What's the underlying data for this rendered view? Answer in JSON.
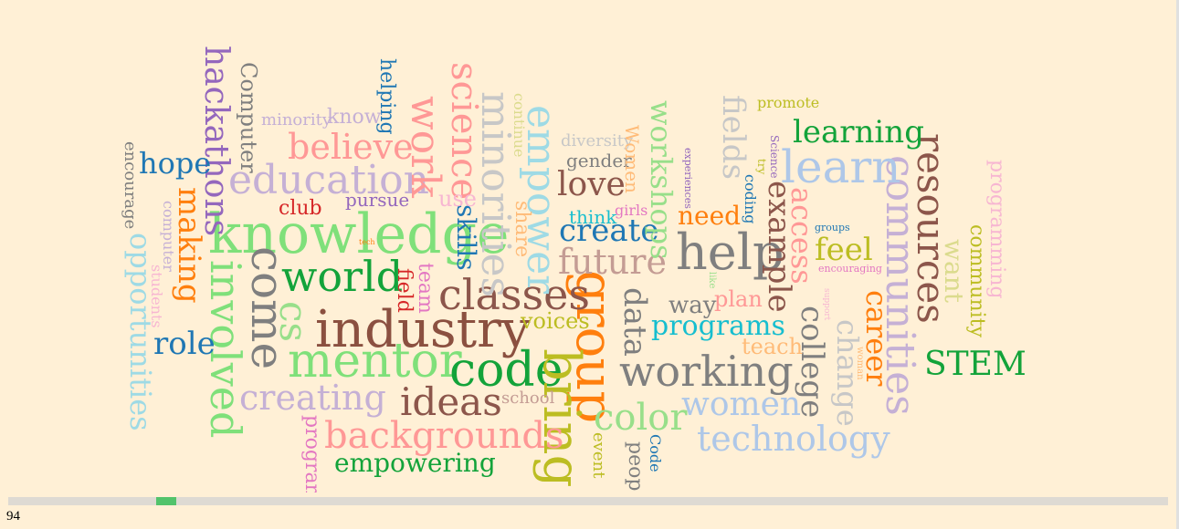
{
  "words": [
    {
      "text": "knowledge",
      "color": "#7fe07a",
      "size": 60
    },
    {
      "text": "industry",
      "color": "#8b5040",
      "size": 56
    },
    {
      "text": "mentor",
      "color": "#7fe07a",
      "size": 52
    },
    {
      "text": "code",
      "color": "#13a33a",
      "size": 52
    },
    {
      "text": "group",
      "color": "#ff7f0e",
      "size": 56
    },
    {
      "text": "bring",
      "color": "#bcbd22",
      "size": 56
    },
    {
      "text": "help",
      "color": "#7f7f7f",
      "size": 54
    },
    {
      "text": "working",
      "color": "#7f7f7f",
      "size": 46
    },
    {
      "text": "communities",
      "color": "#c5b0d5",
      "size": 44
    },
    {
      "text": "resources",
      "color": "#8c564b",
      "size": 42
    },
    {
      "text": "learn",
      "color": "#aec7e8",
      "size": 50
    },
    {
      "text": "come",
      "color": "#7f7f7f",
      "size": 50
    },
    {
      "text": "involved",
      "color": "#7fe07a",
      "size": 46
    },
    {
      "text": "world",
      "color": "#13a33a",
      "size": 46
    },
    {
      "text": "classes",
      "color": "#8c564b",
      "size": 46
    },
    {
      "text": "education",
      "color": "#c5b0d5",
      "size": 44
    },
    {
      "text": "minorities",
      "color": "#c7c7c7",
      "size": 44
    },
    {
      "text": "empower",
      "color": "#9edae5",
      "size": 44
    },
    {
      "text": "work",
      "color": "#ff9896",
      "size": 44
    },
    {
      "text": "science",
      "color": "#ff9896",
      "size": 40
    },
    {
      "text": "ideas",
      "color": "#8c564b",
      "size": 42
    },
    {
      "text": "backgrounds",
      "color": "#ff9896",
      "size": 40
    },
    {
      "text": "color",
      "color": "#98df8a",
      "size": 40
    },
    {
      "text": "technology",
      "color": "#aec7e8",
      "size": 38
    },
    {
      "text": "women",
      "color": "#aec7e8",
      "size": 36
    },
    {
      "text": "creating",
      "color": "#c5b0d5",
      "size": 38
    },
    {
      "text": "cs",
      "color": "#98df8a",
      "size": 42
    },
    {
      "text": "believe",
      "color": "#ff9896",
      "size": 38
    },
    {
      "text": "future",
      "color": "#c49c94",
      "size": 38
    },
    {
      "text": "love",
      "color": "#8c564b",
      "size": 36
    },
    {
      "text": "create",
      "color": "#1f77b4",
      "size": 34
    },
    {
      "text": "hackathons",
      "color": "#9467bd",
      "size": 36
    },
    {
      "text": "opportunities",
      "color": "#9edae5",
      "size": 32
    },
    {
      "text": "making",
      "color": "#ff7f0e",
      "size": 34
    },
    {
      "text": "role",
      "color": "#1f77b4",
      "size": 34
    },
    {
      "text": "hope",
      "color": "#1f77b4",
      "size": 32
    },
    {
      "text": "learning",
      "color": "#13a33a",
      "size": 34
    },
    {
      "text": "STEM",
      "color": "#13a33a",
      "size": 36
    },
    {
      "text": "example",
      "color": "#8c564b",
      "size": 34
    },
    {
      "text": "access",
      "color": "#ff9896",
      "size": 32
    },
    {
      "text": "college",
      "color": "#7f7f7f",
      "size": 34
    },
    {
      "text": "change",
      "color": "#c7c7c7",
      "size": 32
    },
    {
      "text": "career",
      "color": "#ff7f0e",
      "size": 32
    },
    {
      "text": "fields",
      "color": "#c7c7c7",
      "size": 34
    },
    {
      "text": "workshops",
      "color": "#98df8a",
      "size": 32
    },
    {
      "text": "data",
      "color": "#7f7f7f",
      "size": 34
    },
    {
      "text": "programs",
      "color": "#17becf",
      "size": 30
    },
    {
      "text": "feel",
      "color": "#bcbd22",
      "size": 34
    },
    {
      "text": "need",
      "color": "#ff7f0e",
      "size": 28
    },
    {
      "text": "want",
      "color": "#dbdb8d",
      "size": 28
    },
    {
      "text": "empowering",
      "color": "#13a33a",
      "size": 28
    },
    {
      "text": "skills",
      "color": "#1f77b4",
      "size": 28
    },
    {
      "text": "Computer",
      "color": "#7f7f7f",
      "size": 24
    },
    {
      "text": "voices",
      "color": "#bcbd22",
      "size": 24
    },
    {
      "text": "teach",
      "color": "#ffbb78",
      "size": 24
    },
    {
      "text": "way",
      "color": "#7f7f7f",
      "size": 26
    },
    {
      "text": "plan",
      "color": "#ff9896",
      "size": 24
    },
    {
      "text": "community",
      "color": "#bcbd22",
      "size": 22
    },
    {
      "text": "programming",
      "color": "#f7b6d2",
      "size": 22
    },
    {
      "text": "pursue",
      "color": "#9467bd",
      "size": 20
    },
    {
      "text": "club",
      "color": "#d62728",
      "size": 22
    },
    {
      "text": "use",
      "color": "#f7b6d2",
      "size": 24
    },
    {
      "text": "share",
      "color": "#ffbb78",
      "size": 22
    },
    {
      "text": "think",
      "color": "#17becf",
      "size": 20
    },
    {
      "text": "gender",
      "color": "#7f7f7f",
      "size": 20
    },
    {
      "text": "diversity",
      "color": "#c7c7c7",
      "size": 18
    },
    {
      "text": "Women",
      "color": "#ffbb78",
      "size": 20
    },
    {
      "text": "helping",
      "color": "#1f77b4",
      "size": 22
    },
    {
      "text": "know",
      "color": "#c5b0d5",
      "size": 22
    },
    {
      "text": "minority",
      "color": "#c5b0d5",
      "size": 18
    },
    {
      "text": "encourage",
      "color": "#7f7f7f",
      "size": 18
    },
    {
      "text": "computer",
      "color": "#c5b0d5",
      "size": 16
    },
    {
      "text": "students",
      "color": "#f7b6d2",
      "size": 16
    },
    {
      "text": "field",
      "color": "#d62728",
      "size": 22
    },
    {
      "text": "team",
      "color": "#e377c2",
      "size": 22
    },
    {
      "text": "program",
      "color": "#e377c2",
      "size": 22
    },
    {
      "text": "school",
      "color": "#c49c94",
      "size": 18
    },
    {
      "text": "event",
      "color": "#bcbd22",
      "size": 18
    },
    {
      "text": "peop",
      "color": "#7f7f7f",
      "size": 22
    },
    {
      "text": "Code",
      "color": "#1f77b4",
      "size": 16
    },
    {
      "text": "continue",
      "color": "#dbdb8d",
      "size": 16
    },
    {
      "text": "girls",
      "color": "#e377c2",
      "size": 16
    },
    {
      "text": "promote",
      "color": "#bcbd22",
      "size": 16
    },
    {
      "text": "coding",
      "color": "#1f77b4",
      "size": 16
    },
    {
      "text": "experiences",
      "color": "#9467bd",
      "size": 11
    },
    {
      "text": "try",
      "color": "#bcbd22",
      "size": 12
    },
    {
      "text": "Science",
      "color": "#9467bd",
      "size": 12
    },
    {
      "text": "groups",
      "color": "#1f77b4",
      "size": 11
    },
    {
      "text": "encouraging",
      "color": "#e377c2",
      "size": 11
    },
    {
      "text": "support",
      "color": "#f7b6d2",
      "size": 9
    },
    {
      "text": "woman",
      "color": "#ffbb78",
      "size": 10
    },
    {
      "text": "like",
      "color": "#98df8a",
      "size": 10
    },
    {
      "text": "tech",
      "color": "#ff7f0e",
      "size": 8
    }
  ],
  "progress": 0.13,
  "counter": "94"
}
